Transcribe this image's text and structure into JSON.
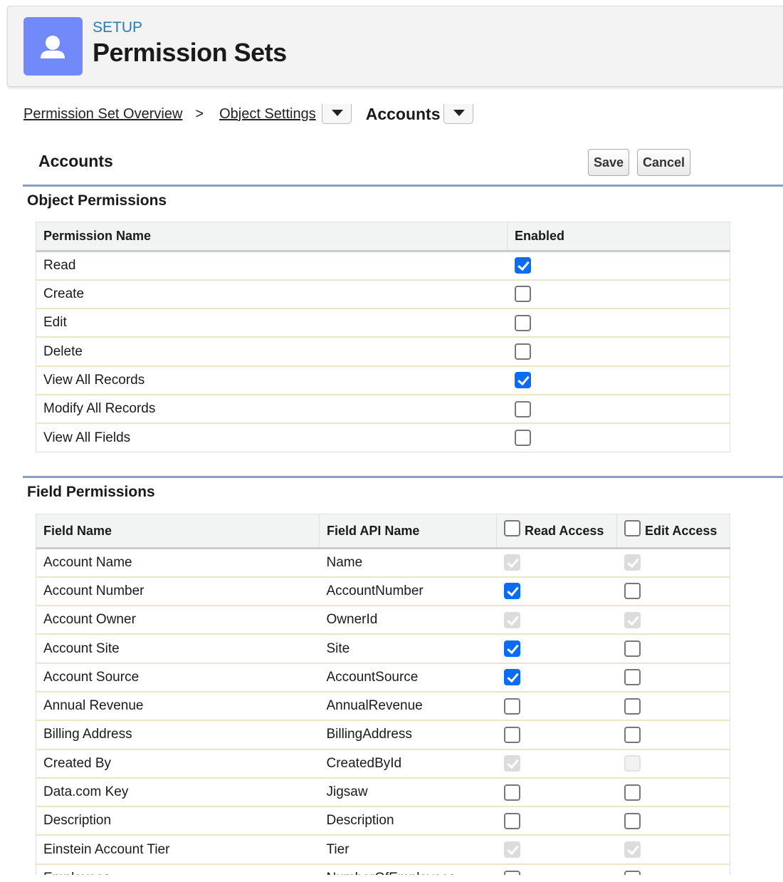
{
  "header": {
    "eyebrow": "SETUP",
    "title": "Permission Sets",
    "icon": "user-icon",
    "accent": "#7189f9"
  },
  "breadcrumb": {
    "items": [
      "Permission Set Overview",
      "Object Settings"
    ],
    "separator": ">",
    "current": "Accounts"
  },
  "page": {
    "title": "Accounts",
    "save_label": "Save",
    "cancel_label": "Cancel"
  },
  "object_permissions": {
    "title": "Object Permissions",
    "columns": [
      "Permission Name",
      "Enabled"
    ],
    "rows": [
      {
        "name": "Read",
        "state": "checked"
      },
      {
        "name": "Create",
        "state": "unchecked"
      },
      {
        "name": "Edit",
        "state": "unchecked"
      },
      {
        "name": "Delete",
        "state": "unchecked"
      },
      {
        "name": "View All Records",
        "state": "checked"
      },
      {
        "name": "Modify All Records",
        "state": "unchecked"
      },
      {
        "name": "View All Fields",
        "state": "unchecked"
      }
    ]
  },
  "field_permissions": {
    "title": "Field Permissions",
    "columns": [
      "Field Name",
      "Field API Name",
      "Read Access",
      "Edit Access"
    ],
    "rows": [
      {
        "name": "Account Name",
        "api": "Name",
        "read": "disabled-checked",
        "edit": "disabled-checked"
      },
      {
        "name": "Account Number",
        "api": "AccountNumber",
        "read": "checked",
        "edit": "unchecked"
      },
      {
        "name": "Account Owner",
        "api": "OwnerId",
        "read": "disabled-checked",
        "edit": "disabled-checked"
      },
      {
        "name": "Account Site",
        "api": "Site",
        "read": "checked",
        "edit": "unchecked"
      },
      {
        "name": "Account Source",
        "api": "AccountSource",
        "read": "checked",
        "edit": "unchecked"
      },
      {
        "name": "Annual Revenue",
        "api": "AnnualRevenue",
        "read": "unchecked",
        "edit": "unchecked"
      },
      {
        "name": "Billing Address",
        "api": "BillingAddress",
        "read": "unchecked",
        "edit": "unchecked"
      },
      {
        "name": "Created By",
        "api": "CreatedById",
        "read": "disabled-checked",
        "edit": "disabled-unchecked"
      },
      {
        "name": "Data.com Key",
        "api": "Jigsaw",
        "read": "unchecked",
        "edit": "unchecked"
      },
      {
        "name": "Description",
        "api": "Description",
        "read": "unchecked",
        "edit": "unchecked"
      },
      {
        "name": "Einstein Account Tier",
        "api": "Tier",
        "read": "disabled-checked",
        "edit": "disabled-checked"
      },
      {
        "name": "Employees",
        "api": "NumberOfEmployees",
        "read": "unchecked",
        "edit": "unchecked"
      }
    ]
  }
}
